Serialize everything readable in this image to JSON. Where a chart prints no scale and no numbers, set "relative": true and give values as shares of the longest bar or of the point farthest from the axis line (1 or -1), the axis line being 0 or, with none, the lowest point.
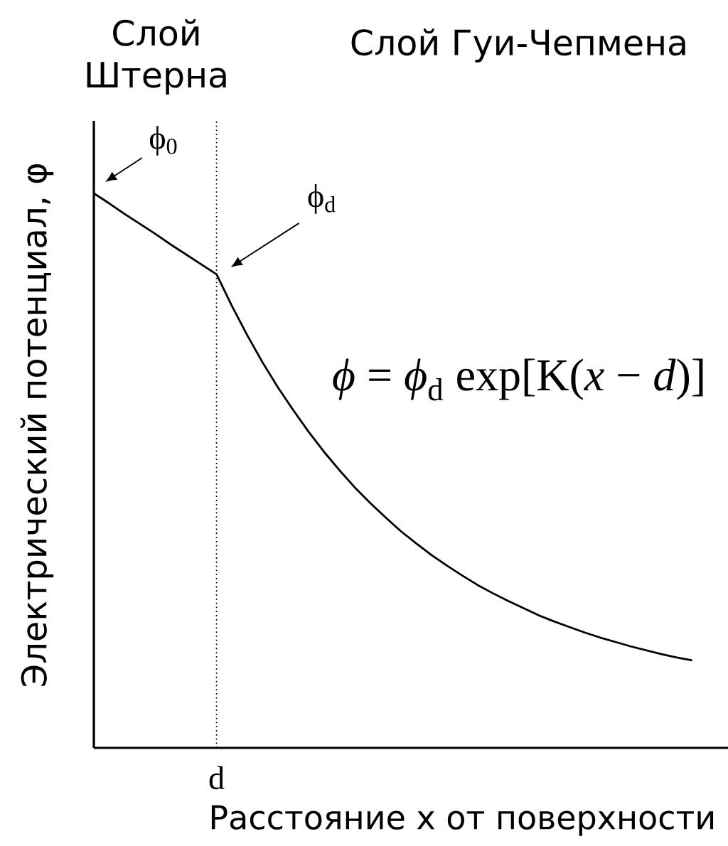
{
  "chart_data": {
    "type": "line",
    "relative": true,
    "xlabel": "Расстояние x от поверхности",
    "ylabel": "Электрический потенциал, φ",
    "categories": [
      null,
      null,
      null,
      null,
      null,
      null,
      null,
      null,
      null,
      null,
      null,
      null,
      null,
      null,
      null,
      null,
      null,
      null,
      null,
      null,
      null,
      null,
      null,
      null,
      null,
      null,
      null,
      null,
      null,
      null,
      null,
      null,
      null,
      null,
      null,
      null,
      null,
      null,
      null,
      null
    ],
    "values": [
      1.0,
      0.982,
      0.963,
      0.945,
      0.927,
      0.908,
      0.89,
      0.872,
      0.854,
      0.797,
      0.744,
      0.695,
      0.65,
      0.609,
      0.57,
      0.534,
      0.501,
      0.47,
      0.442,
      0.416,
      0.391,
      0.369,
      0.348,
      0.329,
      0.311,
      0.294,
      0.279,
      0.265,
      0.252,
      0.239,
      0.228,
      0.218,
      0.208,
      0.199,
      0.191,
      0.183,
      0.176,
      0.169,
      0.163,
      0.158
    ],
    "color": "#000000",
    "ref_lines": [
      {
        "axis": "x",
        "label": "d",
        "line_style": "dotted",
        "color": "#000000"
      }
    ],
    "annotations": [
      "Слой Штерна",
      "Слой Гуи-Чепмена",
      "*ϕ* = *ϕ*$_{d}$ exp[K(*x* − *d*)]",
      "ϕ$_{0}$",
      "ϕ$_{d}$"
    ]
  }
}
